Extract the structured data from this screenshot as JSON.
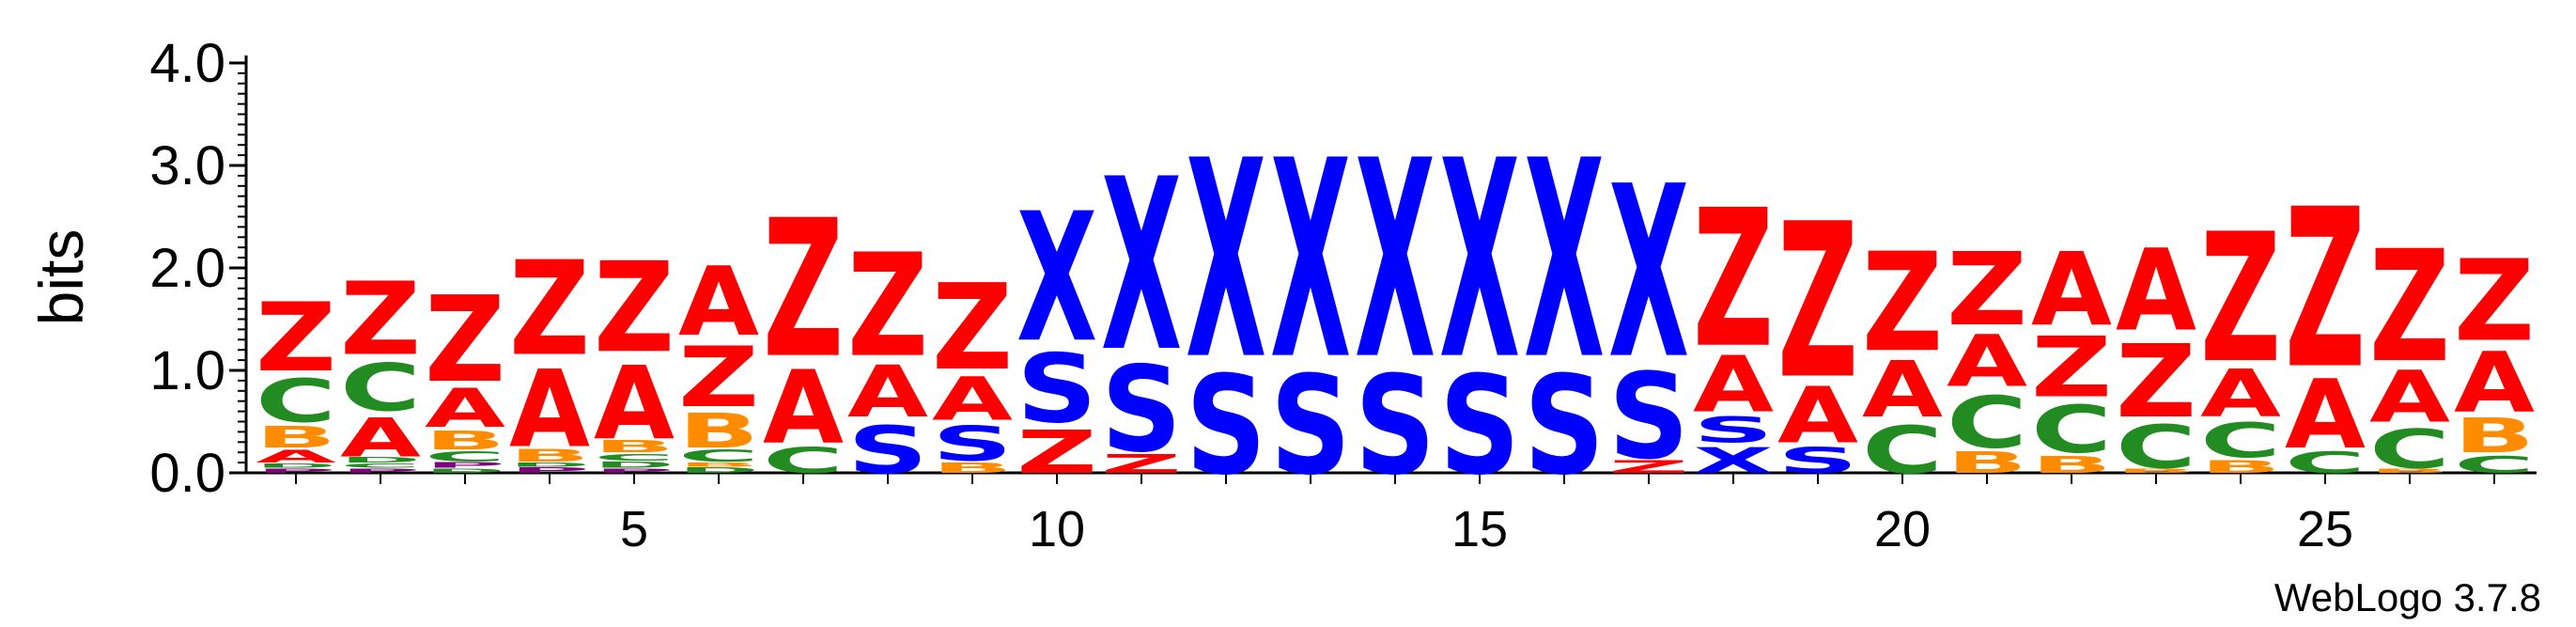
{
  "chart_data": {
    "type": "sequence-logo",
    "title": "",
    "ylabel": "bits",
    "xlabel": "",
    "ylim": [
      0,
      4.0
    ],
    "yticks": [
      "0.0",
      "1.0",
      "2.0",
      "3.0",
      "4.0"
    ],
    "xticks": [
      "5",
      "10",
      "15",
      "20",
      "25"
    ],
    "xlim": [
      1,
      27
    ],
    "footer": "WebLogo 3.7.8",
    "colors": {
      "Z": "#ff0000",
      "A": "#ff0000",
      "X": "#0000ff",
      "S": "#0000ff",
      "C": "#228b22",
      "B": "#ff8c00",
      "D": "#228b22",
      "P": "#800080"
    },
    "positions": [
      {
        "pos": 1,
        "stack": [
          [
            "P",
            0.05
          ],
          [
            "D",
            0.05
          ],
          [
            "A",
            0.15
          ],
          [
            "B",
            0.25
          ],
          [
            "C",
            0.5
          ],
          [
            "Z",
            0.8
          ]
        ]
      },
      {
        "pos": 2,
        "stack": [
          [
            "P",
            0.05
          ],
          [
            "C",
            0.05
          ],
          [
            "D",
            0.06
          ],
          [
            "A",
            0.45
          ],
          [
            "C",
            0.55
          ],
          [
            "Z",
            0.85
          ]
        ]
      },
      {
        "pos": 3,
        "stack": [
          [
            "D",
            0.05
          ],
          [
            "P",
            0.06
          ],
          [
            "C",
            0.12
          ],
          [
            "B",
            0.22
          ],
          [
            "A",
            0.45
          ],
          [
            "Z",
            1.0
          ]
        ]
      },
      {
        "pos": 4,
        "stack": [
          [
            "P",
            0.06
          ],
          [
            "D",
            0.05
          ],
          [
            "B",
            0.15
          ],
          [
            "A",
            0.9
          ],
          [
            "Z",
            1.1
          ]
        ]
      },
      {
        "pos": 5,
        "stack": [
          [
            "P",
            0.05
          ],
          [
            "D",
            0.07
          ],
          [
            "C",
            0.08
          ],
          [
            "B",
            0.14
          ],
          [
            "A",
            0.85
          ],
          [
            "Z",
            1.05
          ]
        ]
      },
      {
        "pos": 6,
        "stack": [
          [
            "D",
            0.06
          ],
          [
            "B",
            0.05
          ],
          [
            "C",
            0.14
          ],
          [
            "B",
            0.4
          ],
          [
            "Z",
            0.7
          ],
          [
            "A",
            0.8
          ]
        ]
      },
      {
        "pos": 7,
        "stack": [
          [
            "C",
            0.3
          ],
          [
            "A",
            0.85
          ],
          [
            "Z",
            1.6
          ]
        ]
      },
      {
        "pos": 8,
        "stack": [
          [
            "S",
            0.55
          ],
          [
            "A",
            0.6
          ],
          [
            "Z",
            1.2
          ]
        ]
      },
      {
        "pos": 9,
        "stack": [
          [
            "B",
            0.12
          ],
          [
            "S",
            0.4
          ],
          [
            "A",
            0.5
          ],
          [
            "Z",
            1.0
          ]
        ]
      },
      {
        "pos": 10,
        "stack": [
          [
            "Z",
            0.5
          ],
          [
            "S",
            0.8
          ],
          [
            "X",
            1.5
          ]
        ]
      },
      {
        "pos": 11,
        "stack": [
          [
            "Z",
            0.22
          ],
          [
            "S",
            1.0
          ],
          [
            "X",
            2.0
          ]
        ]
      },
      {
        "pos": 12,
        "stack": [
          [
            "S",
            1.15
          ],
          [
            "X",
            2.3
          ]
        ]
      },
      {
        "pos": 13,
        "stack": [
          [
            "S",
            1.15
          ],
          [
            "X",
            2.3
          ]
        ]
      },
      {
        "pos": 14,
        "stack": [
          [
            "S",
            1.15
          ],
          [
            "X",
            2.3
          ]
        ]
      },
      {
        "pos": 15,
        "stack": [
          [
            "S",
            1.15
          ],
          [
            "X",
            2.3
          ]
        ]
      },
      {
        "pos": 16,
        "stack": [
          [
            "S",
            1.15
          ],
          [
            "X",
            2.3
          ]
        ]
      },
      {
        "pos": 17,
        "stack": [
          [
            "Z",
            0.15
          ],
          [
            "S",
            1.0
          ],
          [
            "X",
            2.0
          ]
        ]
      },
      {
        "pos": 18,
        "stack": [
          [
            "X",
            0.3
          ],
          [
            "S",
            0.3
          ],
          [
            "A",
            0.65
          ],
          [
            "Z",
            1.6
          ]
        ]
      },
      {
        "pos": 19,
        "stack": [
          [
            "S",
            0.3
          ],
          [
            "A",
            0.65
          ],
          [
            "Z",
            1.8
          ]
        ]
      },
      {
        "pos": 20,
        "stack": [
          [
            "C",
            0.55
          ],
          [
            "A",
            0.65
          ],
          [
            "Z",
            1.15
          ]
        ]
      },
      {
        "pos": 21,
        "stack": [
          [
            "B",
            0.25
          ],
          [
            "C",
            0.6
          ],
          [
            "A",
            0.6
          ],
          [
            "Z",
            0.85
          ]
        ]
      },
      {
        "pos": 22,
        "stack": [
          [
            "B",
            0.2
          ],
          [
            "C",
            0.55
          ],
          [
            "Z",
            0.7
          ],
          [
            "A",
            0.85
          ]
        ]
      },
      {
        "pos": 23,
        "stack": [
          [
            "B",
            0.05
          ],
          [
            "C",
            0.5
          ],
          [
            "Z",
            0.85
          ],
          [
            "A",
            0.95
          ]
        ]
      },
      {
        "pos": 24,
        "stack": [
          [
            "B",
            0.15
          ],
          [
            "C",
            0.4
          ],
          [
            "A",
            0.55
          ],
          [
            "Z",
            1.5
          ]
        ]
      },
      {
        "pos": 25,
        "stack": [
          [
            "C",
            0.25
          ],
          [
            "A",
            0.8
          ],
          [
            "Z",
            1.85
          ]
        ]
      },
      {
        "pos": 26,
        "stack": [
          [
            "B",
            0.05
          ],
          [
            "C",
            0.45
          ],
          [
            "A",
            0.6
          ],
          [
            "Z",
            1.3
          ]
        ]
      },
      {
        "pos": 27,
        "stack": [
          [
            "C",
            0.2
          ],
          [
            "B",
            0.4
          ],
          [
            "A",
            0.7
          ],
          [
            "Z",
            0.95
          ]
        ]
      }
    ]
  }
}
